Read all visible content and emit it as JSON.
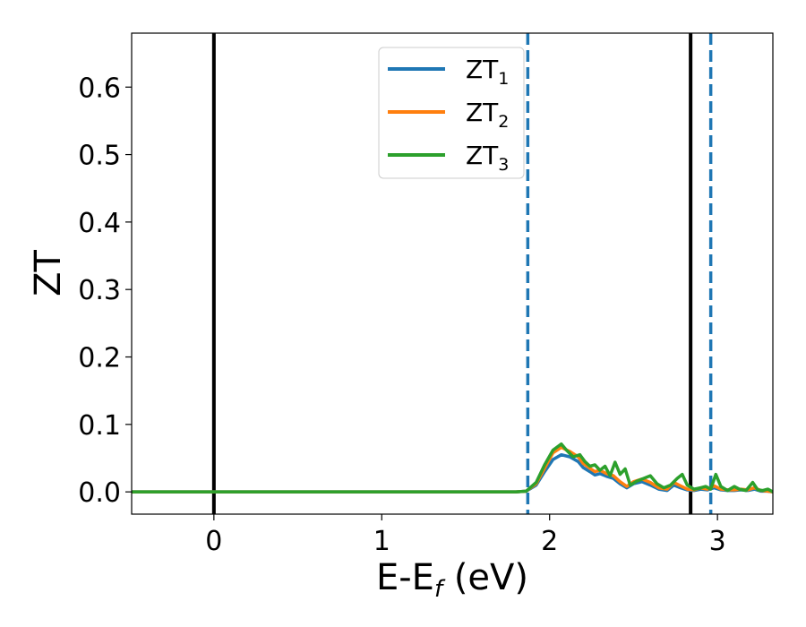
{
  "chart_data": {
    "type": "line",
    "title": "",
    "xlabel_main": "E-E",
    "xlabel_sub": "f",
    "xlabel_tail": " (eV)",
    "ylabel": "ZT",
    "xlim": [
      -0.49,
      3.33
    ],
    "ylim": [
      -0.033,
      0.68
    ],
    "xticks": [
      0,
      1,
      2,
      3
    ],
    "xtick_labels": [
      "0",
      "1",
      "2",
      "3"
    ],
    "yticks": [
      0.0,
      0.1,
      0.2,
      0.3,
      0.4,
      0.5,
      0.6
    ],
    "ytick_labels": [
      "0.0",
      "0.1",
      "0.2",
      "0.3",
      "0.4",
      "0.5",
      "0.6"
    ],
    "grid": false,
    "legend_position": "top-center",
    "vlines": [
      {
        "x": 0.0,
        "style": "solid",
        "color": "#000000"
      },
      {
        "x": 2.84,
        "style": "solid",
        "color": "#000000"
      },
      {
        "x": 1.87,
        "style": "dashed",
        "color": "#1f77b4"
      },
      {
        "x": 2.96,
        "style": "dashed",
        "color": "#1f77b4"
      }
    ],
    "series": [
      {
        "name_main": "ZT",
        "name_sub": "1",
        "color": "#1f77b4",
        "x": [
          -0.49,
          1.8,
          1.86,
          1.92,
          1.97,
          2.02,
          2.07,
          2.12,
          2.17,
          2.2,
          2.24,
          2.27,
          2.3,
          2.34,
          2.38,
          2.42,
          2.46,
          2.5,
          2.55,
          2.6,
          2.65,
          2.7,
          2.74,
          2.78,
          2.82,
          2.86,
          2.9,
          2.94,
          2.98,
          3.02,
          3.06,
          3.1,
          3.14,
          3.18,
          3.22,
          3.26,
          3.3,
          3.33
        ],
        "y": [
          0.0,
          0.0,
          0.001,
          0.01,
          0.03,
          0.048,
          0.055,
          0.052,
          0.045,
          0.036,
          0.03,
          0.025,
          0.027,
          0.023,
          0.02,
          0.012,
          0.006,
          0.012,
          0.015,
          0.01,
          0.004,
          0.002,
          0.01,
          0.006,
          0.003,
          0.002,
          0.004,
          0.003,
          0.006,
          0.003,
          0.002,
          0.002,
          0.003,
          0.002,
          0.004,
          0.001,
          0.001,
          0.0
        ]
      },
      {
        "name_main": "ZT",
        "name_sub": "2",
        "color": "#ff7f0e",
        "x": [
          -0.49,
          1.8,
          1.86,
          1.92,
          1.97,
          2.02,
          2.07,
          2.12,
          2.17,
          2.2,
          2.24,
          2.27,
          2.3,
          2.34,
          2.38,
          2.42,
          2.46,
          2.5,
          2.55,
          2.6,
          2.65,
          2.7,
          2.74,
          2.78,
          2.82,
          2.86,
          2.9,
          2.94,
          2.98,
          3.02,
          3.06,
          3.1,
          3.14,
          3.18,
          3.22,
          3.26,
          3.3,
          3.33
        ],
        "y": [
          0.0,
          0.0,
          0.001,
          0.012,
          0.035,
          0.058,
          0.066,
          0.06,
          0.052,
          0.042,
          0.035,
          0.03,
          0.032,
          0.027,
          0.024,
          0.015,
          0.008,
          0.015,
          0.019,
          0.014,
          0.006,
          0.004,
          0.014,
          0.009,
          0.004,
          0.003,
          0.006,
          0.004,
          0.009,
          0.004,
          0.003,
          0.003,
          0.004,
          0.003,
          0.006,
          0.002,
          0.001,
          0.0
        ]
      },
      {
        "name_main": "ZT",
        "name_sub": "3",
        "color": "#2ca02c",
        "x": [
          -0.49,
          1.8,
          1.86,
          1.92,
          1.97,
          2.02,
          2.07,
          2.1,
          2.14,
          2.18,
          2.21,
          2.24,
          2.27,
          2.3,
          2.33,
          2.36,
          2.39,
          2.42,
          2.45,
          2.48,
          2.52,
          2.56,
          2.6,
          2.64,
          2.68,
          2.72,
          2.76,
          2.79,
          2.82,
          2.86,
          2.9,
          2.93,
          2.96,
          2.99,
          3.02,
          3.06,
          3.1,
          3.13,
          3.17,
          3.21,
          3.24,
          3.27,
          3.3,
          3.33
        ],
        "y": [
          0.0,
          0.0,
          0.001,
          0.014,
          0.04,
          0.062,
          0.071,
          0.062,
          0.052,
          0.055,
          0.045,
          0.038,
          0.04,
          0.032,
          0.038,
          0.024,
          0.044,
          0.026,
          0.034,
          0.01,
          0.016,
          0.02,
          0.024,
          0.012,
          0.006,
          0.01,
          0.02,
          0.026,
          0.01,
          0.004,
          0.006,
          0.008,
          0.004,
          0.026,
          0.008,
          0.002,
          0.008,
          0.004,
          0.002,
          0.014,
          0.003,
          0.002,
          0.004,
          0.0
        ]
      }
    ]
  }
}
